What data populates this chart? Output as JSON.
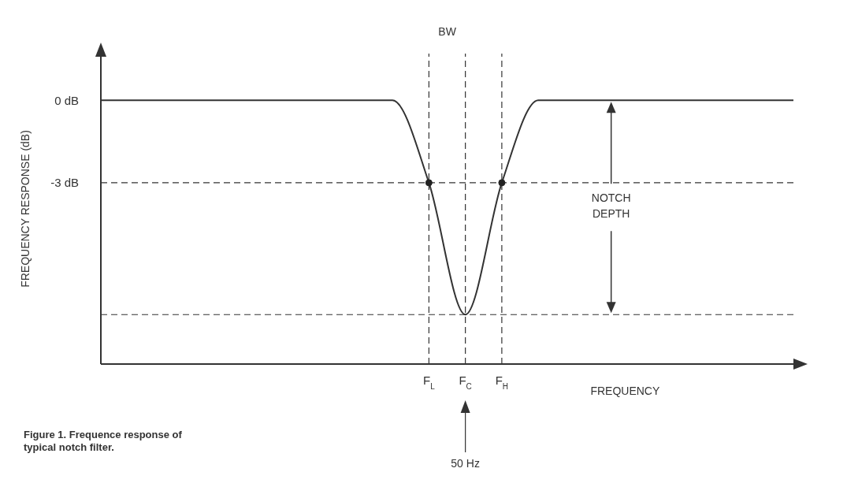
{
  "chart_data": {
    "type": "line",
    "xlabel": "FREQUENCY",
    "ylabel": "FREQUENCY RESPONSE (dB)",
    "categories": [
      null,
      null,
      null,
      null,
      null,
      null,
      null,
      null,
      null,
      "F$_{L}$",
      "F$_{C}$",
      "F$_{H}$",
      null,
      null,
      null,
      null,
      null,
      null,
      null,
      null
    ],
    "series": [
      {
        "color": "#333333",
        "values": [
          0,
          0,
          0,
          0,
          0,
          0,
          0,
          0,
          0,
          -3,
          -7.8,
          -3,
          0,
          0,
          0,
          0,
          0,
          0,
          0,
          0
        ]
      },
      {
        "type": "scatter",
        "marker": "circle",
        "color": "#222222",
        "values": [
          null,
          null,
          null,
          null,
          null,
          null,
          null,
          null,
          null,
          -3,
          null,
          -3,
          null,
          null,
          null,
          null,
          null,
          null,
          null,
          null
        ]
      }
    ],
    "ylim": [
      -9.6,
      1.7
    ],
    "yticks": [
      {
        "value": 0,
        "label": "0 dB"
      },
      {
        "value": -3,
        "label": "-3 dB"
      }
    ],
    "grid": false,
    "marker": "none",
    "line_style": "solid",
    "ref_lines": [
      {
        "axis": "x",
        "value": "F$_{L}$",
        "line_style": "dashed"
      },
      {
        "axis": "x",
        "value": "F$_{C}$",
        "line_style": "dashed"
      },
      {
        "axis": "x",
        "value": "F$_{H}$",
        "line_style": "dashed"
      },
      {
        "axis": "y",
        "value": -3,
        "line_style": "dashed"
      },
      {
        "axis": "y",
        "value": -7.8,
        "line_style": "dashed"
      }
    ],
    "annotations": [
      "BW",
      "NOTCH DEPTH",
      "50 Hz",
      "Figure 1. Frequence response of typical notch filter."
    ]
  }
}
